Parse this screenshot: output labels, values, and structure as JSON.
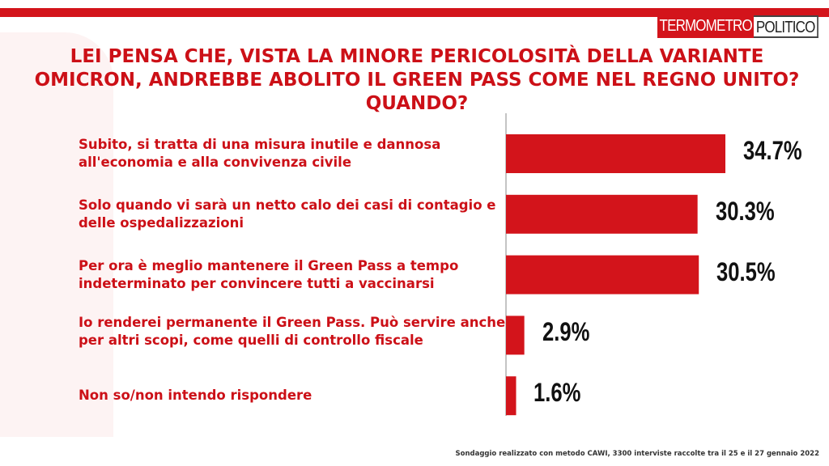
{
  "logo": {
    "left": "TERMOMETRO",
    "right": "POLITICO"
  },
  "chart_data": {
    "type": "bar",
    "orientation": "horizontal",
    "title": "LEI PENSA CHE, VISTA LA MINORE PERICOLOSITÀ DELLA VARIANTE OMICRON, ANDREBBE ABOLITO IL GREEN PASS COME NEL REGNO UNITO? QUANDO?",
    "categories": [
      "Subito, si tratta di una misura inutile e dannosa all'economia e alla convivenza civile",
      "Solo quando vi sarà  un netto calo dei casi di contagio e delle ospedalizzazioni",
      "Per ora è meglio mantenere il Green Pass a tempo indeterminato per convincere tutti a vaccinarsi",
      "Io renderei permanente il Green Pass. Può servire anche per altri scopi, come quelli di controllo fiscale",
      "Non so/non intendo rispondere"
    ],
    "values": [
      34.7,
      30.3,
      30.5,
      2.9,
      1.6
    ],
    "value_labels": [
      "34.7%",
      "30.3%",
      "30.5%",
      "2.9%",
      "1.6%"
    ],
    "color": "#d3141b",
    "note": "Sondaggio realizzato con metodo CAWI, 3300 interviste raccolte tra il 25 e il 27 gennaio 2022"
  }
}
